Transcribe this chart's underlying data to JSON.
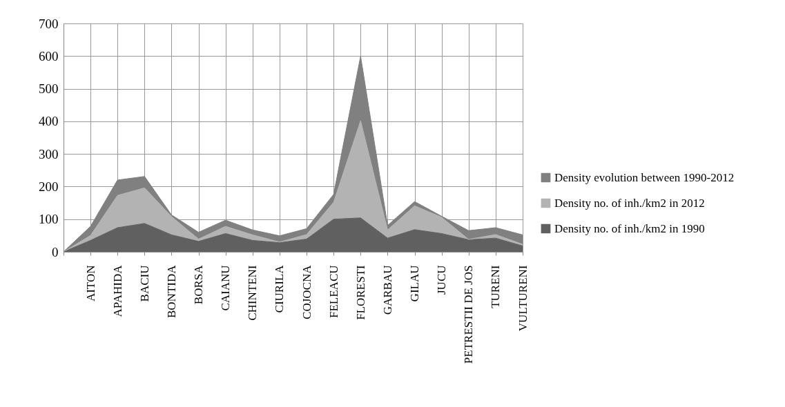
{
  "chart_data": {
    "type": "area",
    "stacked": true,
    "categories": [
      null,
      "AITON",
      "APAHIDA",
      "BACIU",
      "BONTIDA",
      "BORSA",
      "CAIANU",
      "CHINTENI",
      "CIURILA",
      "COJOCNA",
      "FELEACU",
      "FLORESTI",
      "GARBAU",
      "GILAU",
      "JUCU",
      "PETRESTII DE JOS",
      "TURENI",
      "VULTURENI"
    ],
    "series": [
      {
        "name": "Density no. of inh./km2 in 1990",
        "color": "#606060",
        "values": [
          0,
          35,
          74,
          87,
          52,
          32,
          56,
          35,
          28,
          39,
          100,
          104,
          42,
          68,
          56,
          37,
          42,
          18
        ]
      },
      {
        "name": "Density  no. of inh./km2 in 2012",
        "color": "#b3b3b3",
        "values": [
          0,
          15,
          99,
          109,
          56,
          7,
          22,
          17,
          2,
          14,
          52,
          298,
          25,
          73,
          50,
          1,
          11,
          5
        ]
      },
      {
        "name": "Density evolution between 1990-2012",
        "color": "#808080",
        "values": [
          0,
          28,
          47,
          35,
          5,
          21,
          19,
          15,
          19,
          18,
          24,
          198,
          14,
          13,
          3,
          27,
          21,
          29
        ]
      }
    ],
    "ylim": [
      0,
      700
    ],
    "yticks": [
      0,
      100,
      200,
      300,
      400,
      500,
      600,
      700
    ],
    "grid": true,
    "legend": "right"
  }
}
